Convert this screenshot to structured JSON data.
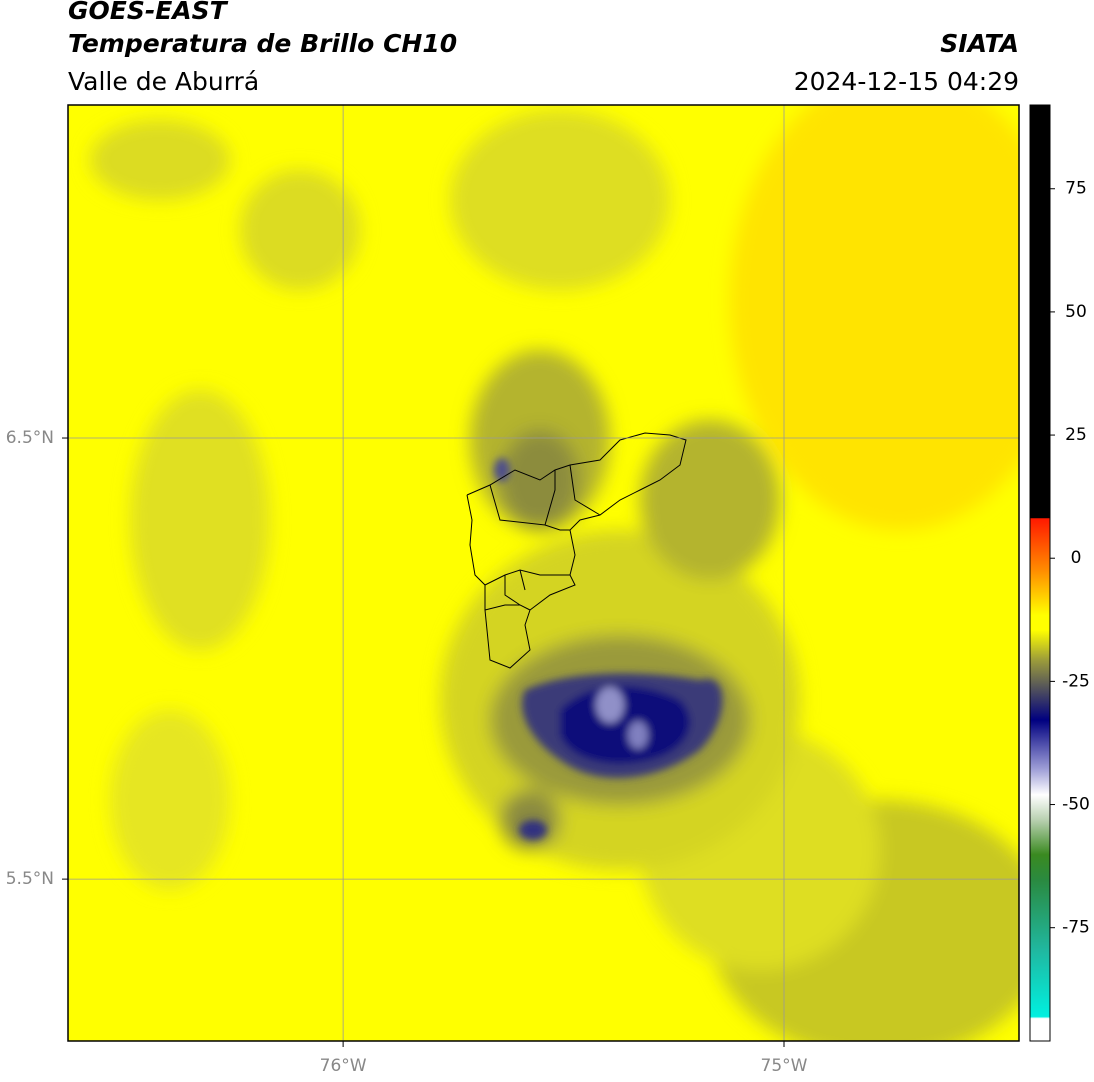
{
  "header": {
    "title": "GOES-EAST",
    "subtitle": "Temperatura de Brillo CH10",
    "region": "Valle de Aburrá",
    "source": "SIATA",
    "timestamp": "2024-12-15 04:29"
  },
  "map": {
    "xlim": [
      -76.624,
      -74.467
    ],
    "ylim": [
      5.133,
      7.255
    ],
    "xticks": [
      {
        "value": -76,
        "label": "76°W"
      },
      {
        "value": -75,
        "label": "75°W"
      }
    ],
    "yticks": [
      {
        "value": 5.5,
        "label": "5.5°N"
      },
      {
        "value": 6.5,
        "label": "6.5°N"
      }
    ],
    "grid": true
  },
  "colorbar": {
    "lim": [
      -98,
      92
    ],
    "ticks": [
      -75,
      -50,
      -25,
      0,
      25,
      50,
      75
    ]
  }
}
